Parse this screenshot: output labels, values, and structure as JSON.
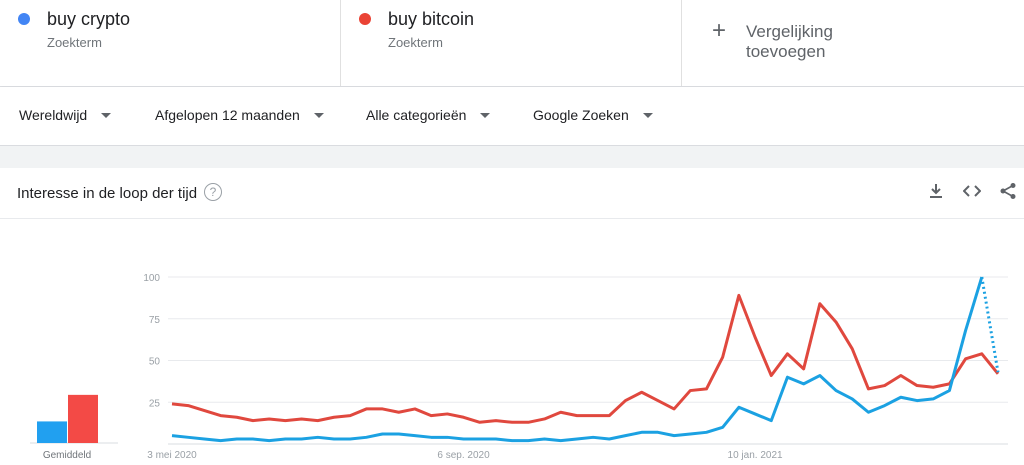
{
  "terms": [
    {
      "label": "buy crypto",
      "sub": "Zoekterm",
      "color": "#4285f4"
    },
    {
      "label": "buy bitcoin",
      "sub": "Zoekterm",
      "color": "#ea4335"
    }
  ],
  "add_comparison": {
    "label": "Vergelijking toevoegen",
    "icon": "plus-icon"
  },
  "filters": {
    "region": "Wereldwijd",
    "period": "Afgelopen 12 maanden",
    "category": "Alle categorieën",
    "property": "Google Zoeken"
  },
  "card": {
    "title": "Interesse in de loop der tijd",
    "help_icon": "?",
    "tools": [
      "download-icon",
      "embed-icon",
      "share-icon"
    ]
  },
  "chart_data": {
    "type": "line",
    "ylim": [
      0,
      100
    ],
    "yticks": [
      "100",
      "75",
      "50",
      "25"
    ],
    "x_tick_labels": [
      "3 mei 2020",
      "6 sep. 2020",
      "10 jan. 2021"
    ],
    "x_tick_index": [
      0,
      18,
      36
    ],
    "series": [
      {
        "name": "buy crypto",
        "color": "#4285f4",
        "values": [
          5,
          4,
          3,
          2,
          3,
          3,
          2,
          3,
          3,
          4,
          3,
          3,
          4,
          6,
          6,
          5,
          4,
          4,
          3,
          3,
          3,
          2,
          2,
          3,
          2,
          3,
          4,
          3,
          5,
          7,
          7,
          5,
          6,
          7,
          10,
          22,
          18,
          14,
          40,
          36,
          41,
          32,
          27,
          19,
          23,
          28,
          26,
          27,
          32,
          68,
          100,
          43
        ],
        "partial_from": 50
      },
      {
        "name": "buy bitcoin",
        "color": "#ea4335",
        "values": [
          24,
          23,
          20,
          17,
          16,
          14,
          15,
          14,
          15,
          14,
          16,
          17,
          21,
          21,
          19,
          21,
          17,
          18,
          16,
          13,
          14,
          13,
          13,
          15,
          19,
          17,
          17,
          17,
          26,
          31,
          26,
          21,
          32,
          33,
          52,
          89,
          64,
          41,
          54,
          45,
          84,
          73,
          57,
          33,
          35,
          41,
          35,
          34,
          36,
          51,
          54,
          42
        ]
      }
    ],
    "averages": [
      {
        "name": "buy crypto",
        "value": 13
      },
      {
        "name": "buy bitcoin",
        "value": 29
      }
    ],
    "average_label": "Gemiddeld",
    "grid": true
  }
}
